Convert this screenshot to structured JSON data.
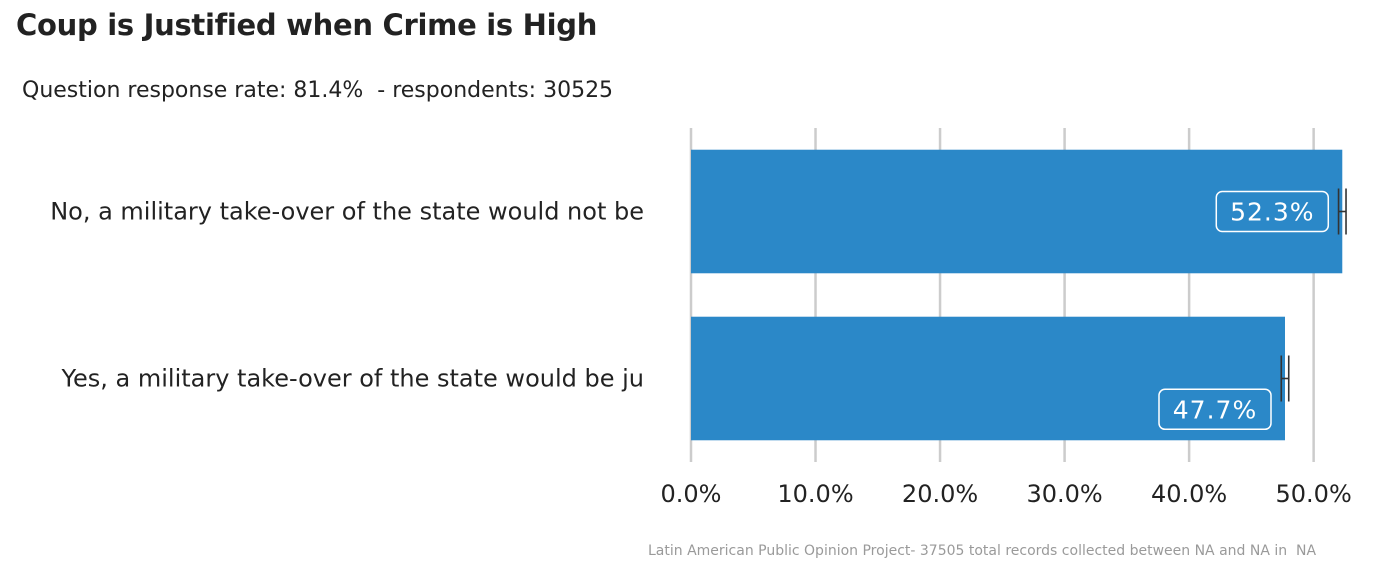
{
  "chart_data": {
    "type": "bar",
    "orientation": "horizontal",
    "title": "Coup is Justified when Crime is High",
    "subtitle": "Question response rate: 81.4%  - respondents: 30525",
    "caption": "Latin American Public Opinion Project- 37505 total records collected between NA and NA in  NA",
    "categories": [
      "No, a military take-over of the state would not be",
      "Yes, a military take-over of the state would be ju"
    ],
    "values": [
      52.3,
      47.7
    ],
    "error_low": [
      52.0,
      47.4
    ],
    "error_high": [
      52.6,
      48.0
    ],
    "data_labels": [
      "52.3%",
      "47.7%"
    ],
    "xlim": [
      0,
      53
    ],
    "ticks": [
      0,
      10,
      20,
      30,
      40,
      50
    ],
    "tick_labels": [
      "0.0%",
      "10.0%",
      "20.0%",
      "30.0%",
      "40.0%",
      "50.0%"
    ],
    "grid": true,
    "bar_color": "#2b88c8",
    "grid_color": "#cccccc",
    "errorbar_color": "#333333"
  }
}
